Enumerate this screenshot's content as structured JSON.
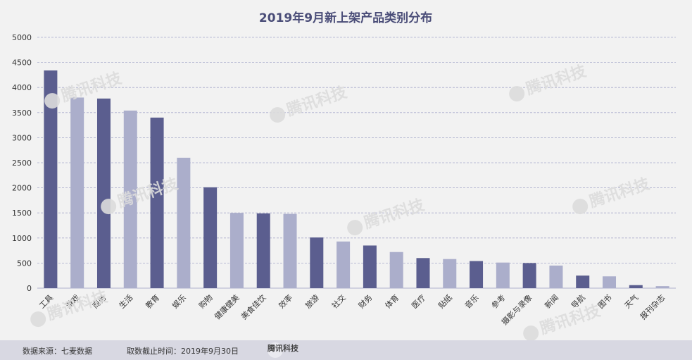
{
  "chart_data": {
    "type": "bar",
    "title": "2019年9月新上架产品类别分布",
    "xlabel": "",
    "ylabel": "",
    "ylim": [
      0,
      5000
    ],
    "yticks": [
      0,
      500,
      1000,
      1500,
      2000,
      2500,
      3000,
      3500,
      4000,
      4500,
      5000
    ],
    "grid": true,
    "categories": [
      "工具",
      "游戏",
      "商务",
      "生活",
      "教育",
      "娱乐",
      "购物",
      "健康健美",
      "美食佳饮",
      "效率",
      "旅游",
      "社交",
      "财务",
      "体育",
      "医疗",
      "贴纸",
      "音乐",
      "参考",
      "摄影与录像",
      "新闻",
      "导航",
      "图书",
      "天气",
      "报刊杂志"
    ],
    "values": [
      4340,
      3800,
      3780,
      3540,
      3400,
      2600,
      2010,
      1500,
      1490,
      1480,
      1010,
      930,
      850,
      720,
      600,
      580,
      540,
      510,
      500,
      450,
      250,
      235,
      60,
      40
    ],
    "colors": [
      "#5b5e8f",
      "#abaecb"
    ]
  },
  "footer": {
    "source": "数据来源：七麦数据",
    "cutoff": "取数截止时间：2019年9月30日"
  },
  "watermark": {
    "text": "腾讯科技"
  }
}
